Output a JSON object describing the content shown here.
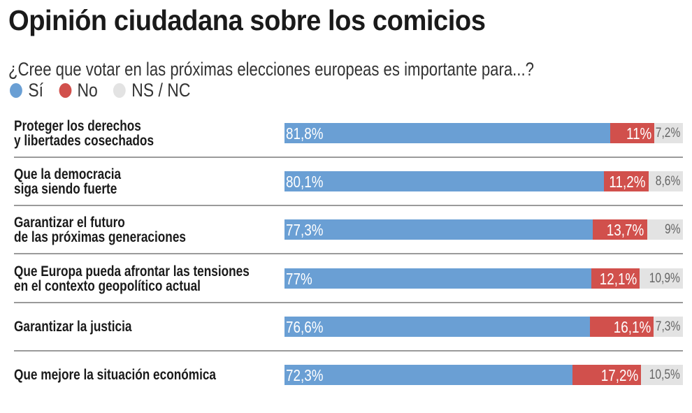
{
  "chart_data": {
    "type": "bar",
    "stacked": true,
    "orientation": "horizontal",
    "title": "Opinión ciudadana sobre los comicios",
    "subtitle": "¿Cree que votar en las próximas elecciones europeas es importante para...?",
    "categories": [
      [
        "Proteger los derechos",
        "y libertades cosechados"
      ],
      [
        "Que la democracia",
        "siga siendo fuerte"
      ],
      [
        "Garantizar el futuro",
        "de las próximas generaciones"
      ],
      [
        "Que Europa pueda afrontar las tensiones",
        "en el contexto geopolítico actual"
      ],
      [
        "Garantizar la justicia"
      ],
      [
        "Que mejore la situación económica"
      ]
    ],
    "series": [
      {
        "name": "Sí",
        "color": "#6a9fd4",
        "values": [
          81.8,
          80.1,
          77.3,
          77,
          76.6,
          72.3
        ],
        "labels": [
          "81,8%",
          "80,1%",
          "77,3%",
          "77%",
          "76,6%",
          "72,3%"
        ]
      },
      {
        "name": "No",
        "color": "#d1504c",
        "values": [
          11,
          11.2,
          13.7,
          12.1,
          16.1,
          17.2
        ],
        "labels": [
          "11%",
          "11,2%",
          "13,7%",
          "12,1%",
          "16,1%",
          "17,2%"
        ]
      },
      {
        "name": "NS / NC",
        "color": "#e3e3e3",
        "values": [
          7.2,
          8.6,
          9,
          10.9,
          7.3,
          10.5
        ],
        "labels": [
          "7,2%",
          "8,6%",
          "9%",
          "10,9%",
          "7,3%",
          "10,5%"
        ]
      }
    ],
    "xlim": [
      0,
      100
    ],
    "grid": false,
    "legend": "top-left"
  }
}
